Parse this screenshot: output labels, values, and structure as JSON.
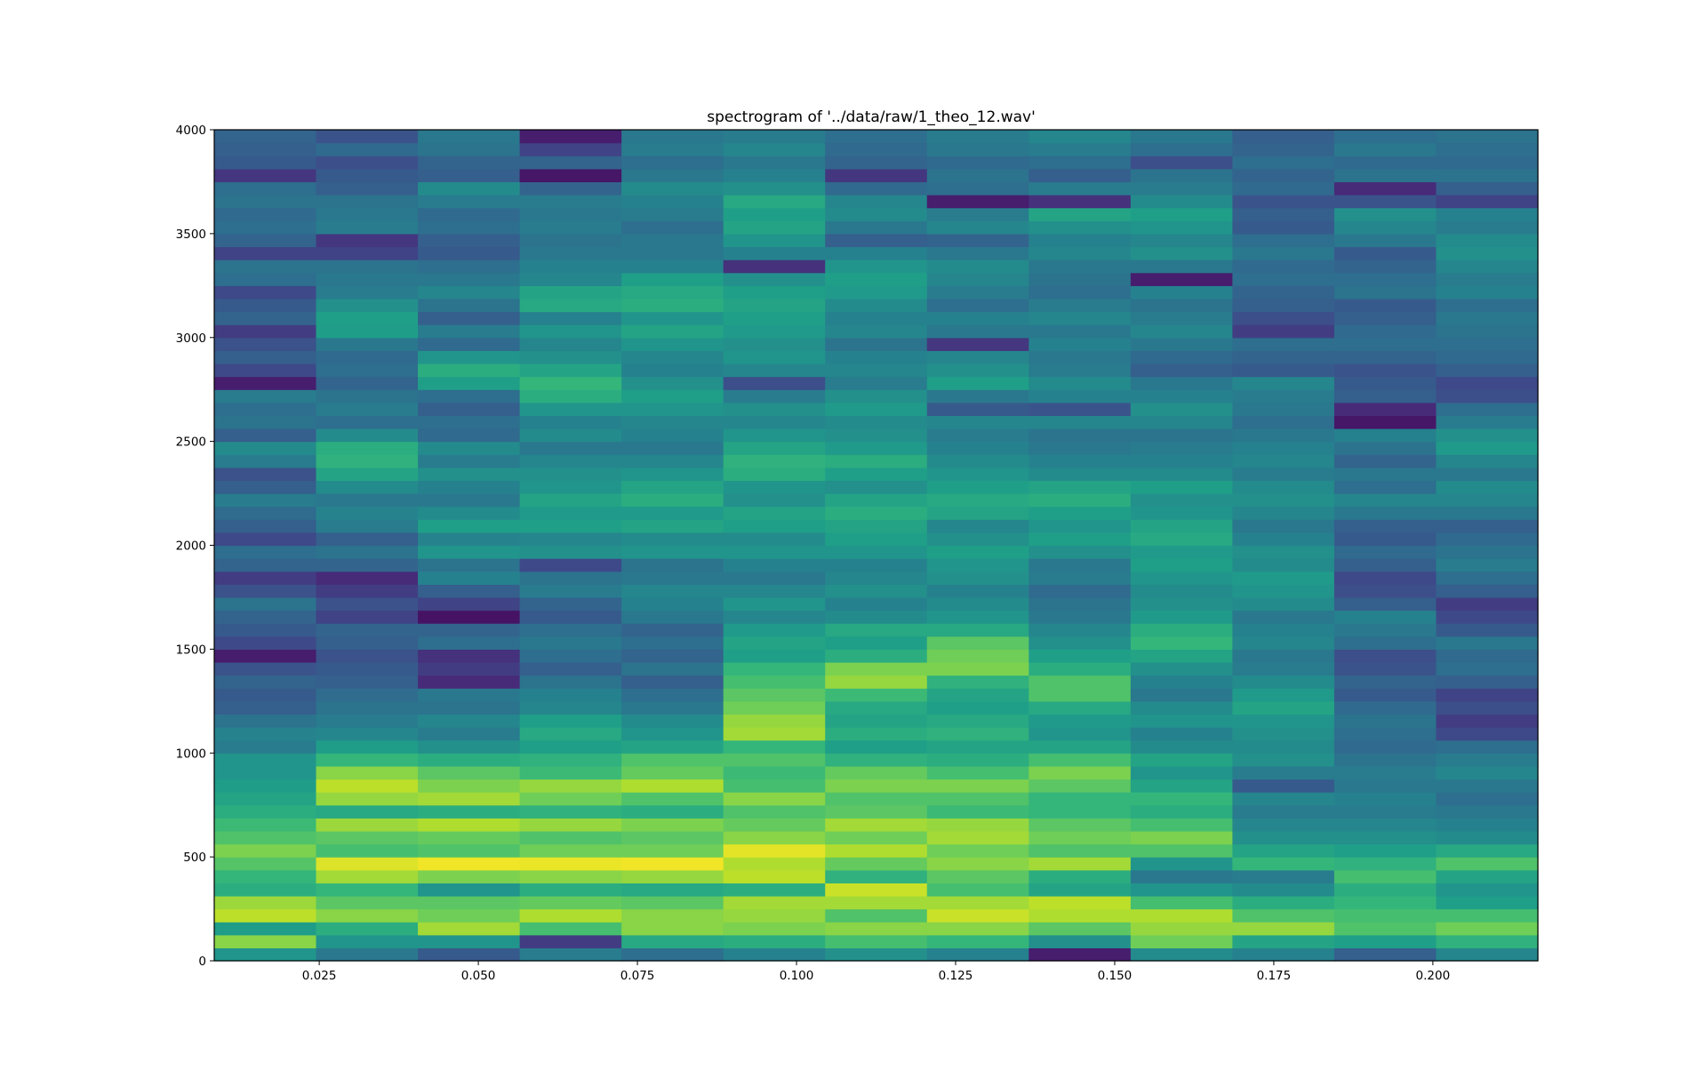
{
  "chart_data": {
    "type": "heatmap",
    "title": "spectrogram of '../data/raw/1_theo_12.wav'",
    "xlabel": "",
    "ylabel": "",
    "xlim": [
      0.0085,
      0.2165
    ],
    "ylim": [
      0,
      4000
    ],
    "grid": false,
    "colormap": "viridis",
    "x_ticks": [
      0.025,
      0.05,
      0.075,
      0.1,
      0.125,
      0.15,
      0.175,
      0.2
    ],
    "x_tick_labels": [
      "0.025",
      "0.050",
      "0.075",
      "0.100",
      "0.125",
      "0.150",
      "0.175",
      "0.200"
    ],
    "y_ticks": [
      0,
      500,
      1000,
      1500,
      2000,
      2500,
      3000,
      3500,
      4000
    ],
    "y_tick_labels": [
      "0",
      "500",
      "1000",
      "1500",
      "2000",
      "2500",
      "3000",
      "3500",
      "4000"
    ],
    "time_bin_edges": [
      0.0085,
      0.0245,
      0.0405,
      0.0565,
      0.0725,
      0.0885,
      0.1045,
      0.1205,
      0.1365,
      0.1525,
      0.1685,
      0.1845,
      0.2005,
      0.2165
    ],
    "frequency_bin_width": 62.5,
    "frequency_bin_count": 64,
    "intensity_range": [
      0,
      1
    ],
    "columns": [
      [
        0.52,
        0.82,
        0.55,
        0.9,
        0.85,
        0.62,
        0.66,
        0.73,
        0.8,
        0.72,
        0.68,
        0.62,
        0.58,
        0.55,
        0.52,
        0.52,
        0.42,
        0.45,
        0.38,
        0.3,
        0.28,
        0.32,
        0.26,
        0.08,
        0.22,
        0.28,
        0.32,
        0.38,
        0.25,
        0.18,
        0.32,
        0.36,
        0.22,
        0.3,
        0.35,
        0.42,
        0.3,
        0.25,
        0.42,
        0.48,
        0.3,
        0.38,
        0.36,
        0.42,
        0.08,
        0.22,
        0.3,
        0.25,
        0.18,
        0.32,
        0.28,
        0.22,
        0.36,
        0.38,
        0.2,
        0.32,
        0.36,
        0.34,
        0.38,
        0.36,
        0.16,
        0.28,
        0.3,
        0.32
      ],
      [
        0.4,
        0.52,
        0.62,
        0.82,
        0.74,
        0.66,
        0.86,
        0.95,
        0.7,
        0.74,
        0.85,
        0.6,
        0.84,
        0.9,
        0.82,
        0.66,
        0.55,
        0.46,
        0.42,
        0.38,
        0.35,
        0.3,
        0.28,
        0.25,
        0.3,
        0.32,
        0.2,
        0.25,
        0.18,
        0.12,
        0.32,
        0.38,
        0.3,
        0.42,
        0.45,
        0.4,
        0.48,
        0.58,
        0.64,
        0.62,
        0.48,
        0.36,
        0.42,
        0.38,
        0.32,
        0.36,
        0.34,
        0.4,
        0.55,
        0.56,
        0.5,
        0.42,
        0.4,
        0.38,
        0.2,
        0.16,
        0.42,
        0.4,
        0.38,
        0.3,
        0.28,
        0.24,
        0.34,
        0.26
      ],
      [
        0.28,
        0.52,
        0.86,
        0.78,
        0.74,
        0.52,
        0.8,
        0.98,
        0.72,
        0.76,
        0.88,
        0.62,
        0.86,
        0.8,
        0.74,
        0.62,
        0.5,
        0.42,
        0.46,
        0.38,
        0.4,
        0.12,
        0.18,
        0.14,
        0.36,
        0.32,
        0.05,
        0.2,
        0.3,
        0.44,
        0.38,
        0.52,
        0.45,
        0.56,
        0.48,
        0.4,
        0.44,
        0.5,
        0.42,
        0.48,
        0.34,
        0.36,
        0.3,
        0.36,
        0.56,
        0.62,
        0.52,
        0.34,
        0.42,
        0.3,
        0.38,
        0.46,
        0.4,
        0.36,
        0.28,
        0.3,
        0.36,
        0.34,
        0.42,
        0.48,
        0.3,
        0.32,
        0.38,
        0.4
      ],
      [
        0.42,
        0.18,
        0.7,
        0.88,
        0.76,
        0.62,
        0.82,
        0.97,
        0.78,
        0.72,
        0.84,
        0.64,
        0.78,
        0.84,
        0.68,
        0.64,
        0.56,
        0.6,
        0.56,
        0.46,
        0.44,
        0.38,
        0.3,
        0.36,
        0.4,
        0.36,
        0.28,
        0.32,
        0.42,
        0.38,
        0.22,
        0.5,
        0.46,
        0.56,
        0.54,
        0.58,
        0.52,
        0.5,
        0.46,
        0.4,
        0.48,
        0.44,
        0.52,
        0.62,
        0.66,
        0.58,
        0.5,
        0.46,
        0.52,
        0.44,
        0.6,
        0.58,
        0.46,
        0.44,
        0.4,
        0.38,
        0.42,
        0.4,
        0.42,
        0.32,
        0.06,
        0.32,
        0.2,
        0.08
      ],
      [
        0.36,
        0.6,
        0.82,
        0.82,
        0.74,
        0.6,
        0.84,
        0.98,
        0.78,
        0.74,
        0.8,
        0.62,
        0.72,
        0.88,
        0.76,
        0.72,
        0.58,
        0.52,
        0.48,
        0.4,
        0.36,
        0.3,
        0.38,
        0.32,
        0.36,
        0.32,
        0.4,
        0.44,
        0.46,
        0.4,
        0.38,
        0.52,
        0.48,
        0.58,
        0.54,
        0.62,
        0.58,
        0.52,
        0.46,
        0.4,
        0.44,
        0.46,
        0.52,
        0.56,
        0.5,
        0.44,
        0.46,
        0.52,
        0.58,
        0.52,
        0.62,
        0.6,
        0.56,
        0.44,
        0.4,
        0.4,
        0.36,
        0.42,
        0.44,
        0.48,
        0.4,
        0.36,
        0.42,
        0.4
      ],
      [
        0.44,
        0.62,
        0.8,
        0.84,
        0.86,
        0.62,
        0.9,
        0.88,
        0.96,
        0.82,
        0.76,
        0.72,
        0.82,
        0.7,
        0.68,
        0.72,
        0.66,
        0.86,
        0.84,
        0.78,
        0.74,
        0.7,
        0.66,
        0.56,
        0.58,
        0.54,
        0.46,
        0.52,
        0.46,
        0.4,
        0.44,
        0.52,
        0.48,
        0.56,
        0.58,
        0.5,
        0.52,
        0.62,
        0.64,
        0.58,
        0.52,
        0.46,
        0.5,
        0.42,
        0.24,
        0.46,
        0.52,
        0.5,
        0.54,
        0.56,
        0.58,
        0.56,
        0.5,
        0.14,
        0.44,
        0.52,
        0.58,
        0.56,
        0.6,
        0.5,
        0.44,
        0.4,
        0.46,
        0.42
      ],
      [
        0.5,
        0.7,
        0.82,
        0.72,
        0.86,
        0.92,
        0.64,
        0.76,
        0.88,
        0.78,
        0.86,
        0.74,
        0.72,
        0.8,
        0.76,
        0.64,
        0.56,
        0.62,
        0.58,
        0.6,
        0.68,
        0.84,
        0.8,
        0.62,
        0.56,
        0.6,
        0.48,
        0.44,
        0.5,
        0.46,
        0.44,
        0.52,
        0.56,
        0.58,
        0.62,
        0.58,
        0.5,
        0.56,
        0.62,
        0.54,
        0.5,
        0.48,
        0.54,
        0.5,
        0.42,
        0.46,
        0.44,
        0.38,
        0.46,
        0.44,
        0.48,
        0.54,
        0.56,
        0.52,
        0.44,
        0.3,
        0.4,
        0.48,
        0.46,
        0.34,
        0.16,
        0.32,
        0.34,
        0.36
      ],
      [
        0.44,
        0.66,
        0.82,
        0.92,
        0.86,
        0.7,
        0.74,
        0.82,
        0.78,
        0.86,
        0.84,
        0.68,
        0.72,
        0.8,
        0.7,
        0.62,
        0.58,
        0.64,
        0.6,
        0.56,
        0.58,
        0.64,
        0.8,
        0.78,
        0.74,
        0.6,
        0.52,
        0.48,
        0.44,
        0.5,
        0.52,
        0.56,
        0.5,
        0.46,
        0.58,
        0.6,
        0.56,
        0.52,
        0.48,
        0.44,
        0.42,
        0.46,
        0.28,
        0.4,
        0.56,
        0.5,
        0.46,
        0.16,
        0.4,
        0.44,
        0.36,
        0.42,
        0.46,
        0.48,
        0.4,
        0.32,
        0.46,
        0.42,
        0.08,
        0.36,
        0.38,
        0.34,
        0.4,
        0.42
      ],
      [
        0.08,
        0.5,
        0.74,
        0.88,
        0.9,
        0.58,
        0.62,
        0.86,
        0.72,
        0.78,
        0.74,
        0.66,
        0.66,
        0.74,
        0.8,
        0.7,
        0.58,
        0.52,
        0.54,
        0.6,
        0.72,
        0.72,
        0.62,
        0.56,
        0.5,
        0.46,
        0.4,
        0.38,
        0.34,
        0.42,
        0.4,
        0.5,
        0.56,
        0.52,
        0.56,
        0.62,
        0.58,
        0.48,
        0.44,
        0.4,
        0.38,
        0.46,
        0.26,
        0.44,
        0.48,
        0.42,
        0.4,
        0.44,
        0.4,
        0.46,
        0.42,
        0.36,
        0.38,
        0.4,
        0.46,
        0.44,
        0.5,
        0.58,
        0.14,
        0.42,
        0.3,
        0.36,
        0.42,
        0.46
      ],
      [
        0.48,
        0.78,
        0.84,
        0.88,
        0.7,
        0.52,
        0.4,
        0.52,
        0.72,
        0.8,
        0.7,
        0.62,
        0.66,
        0.58,
        0.52,
        0.58,
        0.48,
        0.44,
        0.52,
        0.48,
        0.4,
        0.44,
        0.5,
        0.58,
        0.66,
        0.62,
        0.54,
        0.5,
        0.48,
        0.52,
        0.56,
        0.54,
        0.6,
        0.58,
        0.52,
        0.5,
        0.56,
        0.48,
        0.44,
        0.42,
        0.38,
        0.46,
        0.5,
        0.44,
        0.4,
        0.3,
        0.34,
        0.4,
        0.46,
        0.42,
        0.38,
        0.44,
        0.08,
        0.4,
        0.5,
        0.46,
        0.52,
        0.56,
        0.48,
        0.42,
        0.38,
        0.24,
        0.36,
        0.4
      ],
      [
        0.44,
        0.58,
        0.84,
        0.72,
        0.62,
        0.48,
        0.42,
        0.66,
        0.58,
        0.5,
        0.46,
        0.42,
        0.46,
        0.28,
        0.42,
        0.5,
        0.48,
        0.5,
        0.52,
        0.58,
        0.54,
        0.48,
        0.42,
        0.4,
        0.46,
        0.44,
        0.4,
        0.48,
        0.52,
        0.54,
        0.48,
        0.5,
        0.44,
        0.4,
        0.46,
        0.5,
        0.48,
        0.42,
        0.46,
        0.44,
        0.4,
        0.36,
        0.4,
        0.42,
        0.46,
        0.28,
        0.32,
        0.36,
        0.18,
        0.24,
        0.3,
        0.32,
        0.36,
        0.34,
        0.4,
        0.36,
        0.28,
        0.3,
        0.26,
        0.34,
        0.32,
        0.36,
        0.32,
        0.3
      ],
      [
        0.3,
        0.56,
        0.72,
        0.7,
        0.66,
        0.62,
        0.7,
        0.64,
        0.56,
        0.5,
        0.46,
        0.42,
        0.44,
        0.4,
        0.42,
        0.38,
        0.34,
        0.36,
        0.38,
        0.34,
        0.28,
        0.32,
        0.26,
        0.24,
        0.36,
        0.4,
        0.44,
        0.3,
        0.24,
        0.22,
        0.3,
        0.34,
        0.28,
        0.3,
        0.4,
        0.46,
        0.36,
        0.4,
        0.32,
        0.38,
        0.44,
        0.06,
        0.12,
        0.3,
        0.28,
        0.26,
        0.32,
        0.36,
        0.34,
        0.3,
        0.28,
        0.38,
        0.36,
        0.32,
        0.28,
        0.4,
        0.46,
        0.5,
        0.26,
        0.12,
        0.38,
        0.34,
        0.4,
        0.36
      ],
      [
        0.46,
        0.64,
        0.78,
        0.7,
        0.56,
        0.52,
        0.58,
        0.72,
        0.6,
        0.48,
        0.44,
        0.4,
        0.36,
        0.4,
        0.46,
        0.42,
        0.36,
        0.22,
        0.18,
        0.24,
        0.2,
        0.3,
        0.36,
        0.34,
        0.4,
        0.28,
        0.22,
        0.18,
        0.3,
        0.36,
        0.42,
        0.38,
        0.34,
        0.3,
        0.4,
        0.46,
        0.48,
        0.4,
        0.46,
        0.54,
        0.5,
        0.42,
        0.36,
        0.24,
        0.22,
        0.3,
        0.34,
        0.36,
        0.38,
        0.4,
        0.36,
        0.44,
        0.42,
        0.46,
        0.5,
        0.48,
        0.42,
        0.44,
        0.2,
        0.3,
        0.38,
        0.34,
        0.36,
        0.38
      ]
    ]
  }
}
